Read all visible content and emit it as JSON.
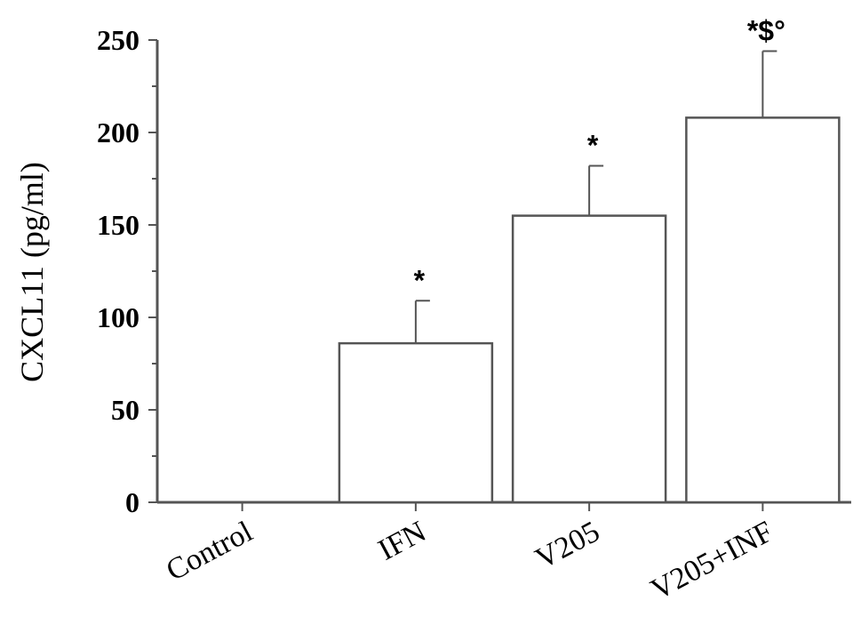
{
  "chart_data": {
    "type": "bar",
    "categories": [
      "Control",
      "IFN",
      "V205",
      "V205+INF"
    ],
    "values": [
      0,
      86,
      155,
      208
    ],
    "errors": [
      0,
      23,
      27,
      36
    ],
    "annotations": [
      "",
      "*",
      "*",
      "*$°"
    ],
    "ylabel": "CXCL11 (pg/ml)",
    "xlabel": "",
    "ylim": [
      0,
      250
    ],
    "yticks": [
      0,
      50,
      100,
      150,
      200,
      250
    ],
    "grid": false,
    "colors": {
      "bar_fill": "#ffffff",
      "stroke": "#555555"
    }
  }
}
